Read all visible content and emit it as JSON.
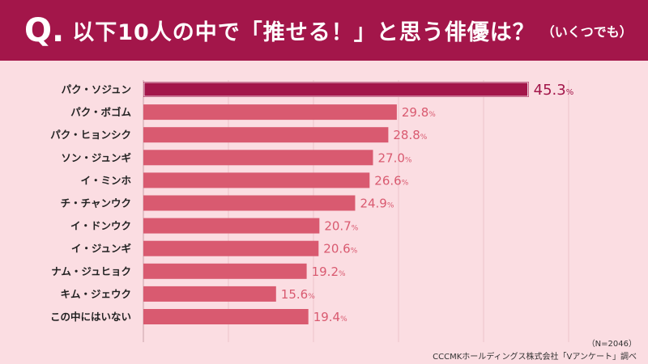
{
  "header": {
    "q_mark": "Q.",
    "title": "以下10人の中で「推せる！」と思う俳優は？",
    "subtitle": "（いくつでも）"
  },
  "footnote": {
    "sample": "（N=2046）",
    "source": "CCCMKホールディングス株式会社「Vアンケート」調べ"
  },
  "colors": {
    "header": "#a3164a",
    "top_bar": "#a3164a",
    "bar": "#d95a70",
    "background": "#fbdde2",
    "top_label": "#a3164a",
    "label": "#d95a70"
  },
  "chart_data": {
    "type": "bar",
    "orientation": "horizontal",
    "categories": [
      "パク・ソジュン",
      "パク・ボゴム",
      "パク・ヒョンシク",
      "ソン・ジュンギ",
      "イ・ミンホ",
      "チ・チャンウク",
      "イ・ドンウク",
      "イ・ジュンギ",
      "ナム・ジュヒョク",
      "キム・ジェウク",
      "この中にはいない"
    ],
    "values": [
      45.3,
      29.8,
      28.8,
      27.0,
      26.6,
      24.9,
      20.7,
      20.6,
      19.2,
      15.6,
      19.4
    ],
    "value_labels": [
      "45.3",
      "29.8",
      "28.8",
      "27.0",
      "26.6",
      "24.9",
      "20.7",
      "20.6",
      "19.2",
      "15.6",
      "19.4"
    ],
    "unit": "%",
    "xlim": [
      0,
      60
    ],
    "grid": true,
    "highlight_index": 0
  }
}
